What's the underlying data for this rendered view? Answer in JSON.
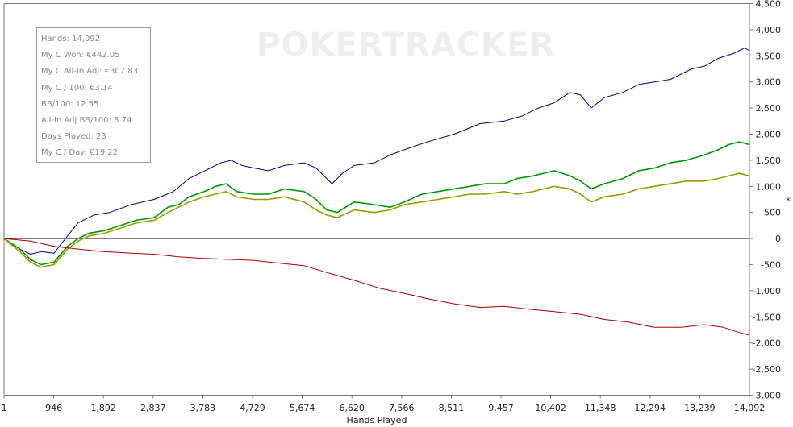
{
  "watermark": "POKERTRACKER",
  "stats": [
    "Hands: 14,092",
    "My C Won: €442.05",
    "My C All-In Adj: €307.83",
    "My C / 100: €3.14",
    "BB/100: 12.55",
    "All-In Adj BB/100: 8.74",
    "Days Played: 23",
    "My C / Day: €19.22"
  ],
  "chart_data": {
    "type": "line",
    "xlabel": "Hands Played",
    "ylabel": "*",
    "xlim": [
      1,
      14092
    ],
    "ylim": [
      -3000,
      4500
    ],
    "x_ticks": [
      "1",
      "946",
      "1,892",
      "2,837",
      "3,783",
      "4,729",
      "5,674",
      "6,620",
      "7,566",
      "8,511",
      "9,457",
      "10,402",
      "11,348",
      "12,294",
      "13,239",
      "14,092"
    ],
    "y_ticks": [
      "4,500",
      "4,000",
      "3,500",
      "3,000",
      "2,500",
      "2,000",
      "1,500",
      "1,000",
      "500",
      "0",
      "-500",
      "-1,000",
      "-1,500",
      "-2,000",
      "-2,500",
      "-3,000"
    ],
    "grid": false,
    "legend": "none",
    "series": [
      {
        "color": "#00009a",
        "x": [
          1,
          300,
          500,
          700,
          946,
          1200,
          1400,
          1500,
          1700,
          2000,
          2400,
          2837,
          3200,
          3500,
          3800,
          4100,
          4300,
          4500,
          4729,
          5000,
          5300,
          5674,
          5900,
          6200,
          6400,
          6620,
          7000,
          7300,
          7566,
          8000,
          8511,
          9000,
          9457,
          9800,
          10100,
          10402,
          10700,
          10900,
          11100,
          11348,
          11700,
          12000,
          12294,
          12600,
          13000,
          13239,
          13500,
          13800,
          14000,
          14092
        ],
        "values": [
          0,
          -200,
          -300,
          -250,
          -280,
          50,
          300,
          350,
          450,
          500,
          650,
          750,
          900,
          1150,
          1300,
          1450,
          1500,
          1400,
          1350,
          1300,
          1400,
          1450,
          1350,
          1050,
          1250,
          1400,
          1450,
          1600,
          1700,
          1850,
          2000,
          2200,
          2250,
          2350,
          2500,
          2600,
          2800,
          2750,
          2500,
          2700,
          2800,
          2950,
          3000,
          3050,
          3250,
          3300,
          3450,
          3550,
          3650,
          3600
        ]
      },
      {
        "color": "#009a00",
        "x": [
          1,
          300,
          500,
          700,
          946,
          1200,
          1400,
          1600,
          1892,
          2200,
          2500,
          2837,
          3100,
          3300,
          3500,
          3783,
          4000,
          4200,
          4400,
          4729,
          5000,
          5300,
          5674,
          5900,
          6100,
          6300,
          6620,
          7000,
          7300,
          7566,
          7900,
          8200,
          8511,
          8800,
          9100,
          9457,
          9700,
          10000,
          10200,
          10402,
          10700,
          10900,
          11100,
          11348,
          11700,
          12000,
          12294,
          12600,
          12900,
          13239,
          13500,
          13700,
          13900,
          14092
        ],
        "values": [
          0,
          -200,
          -400,
          -500,
          -450,
          -150,
          0,
          100,
          150,
          250,
          350,
          400,
          600,
          650,
          800,
          900,
          1000,
          1050,
          900,
          850,
          850,
          950,
          900,
          750,
          550,
          500,
          700,
          650,
          600,
          700,
          850,
          900,
          950,
          1000,
          1050,
          1050,
          1150,
          1200,
          1250,
          1300,
          1200,
          1100,
          950,
          1050,
          1150,
          1300,
          1350,
          1450,
          1500,
          1600,
          1700,
          1800,
          1850,
          1800
        ]
      },
      {
        "color": "#9a9a00",
        "x": [
          1,
          300,
          500,
          700,
          946,
          1200,
          1400,
          1600,
          1892,
          2200,
          2500,
          2837,
          3100,
          3300,
          3500,
          3783,
          4000,
          4200,
          4400,
          4729,
          5000,
          5300,
          5674,
          5900,
          6100,
          6300,
          6620,
          7000,
          7300,
          7566,
          7900,
          8200,
          8511,
          8800,
          9100,
          9457,
          9700,
          10000,
          10200,
          10402,
          10700,
          10900,
          11100,
          11348,
          11700,
          12000,
          12294,
          12600,
          12900,
          13239,
          13500,
          13700,
          13900,
          14092
        ],
        "values": [
          0,
          -250,
          -450,
          -550,
          -500,
          -200,
          -50,
          50,
          100,
          200,
          300,
          350,
          500,
          600,
          700,
          800,
          850,
          900,
          800,
          750,
          750,
          800,
          700,
          550,
          450,
          400,
          550,
          500,
          550,
          650,
          700,
          750,
          800,
          850,
          850,
          900,
          850,
          900,
          950,
          1000,
          950,
          850,
          700,
          800,
          850,
          950,
          1000,
          1050,
          1100,
          1100,
          1150,
          1200,
          1250,
          1200
        ]
      },
      {
        "color": "#aa0000",
        "x": [
          1,
          500,
          946,
          1400,
          1892,
          2400,
          2837,
          3300,
          3783,
          4300,
          4729,
          5200,
          5674,
          6100,
          6620,
          7100,
          7566,
          8000,
          8511,
          9000,
          9457,
          9900,
          10402,
          10900,
          11348,
          11800,
          12294,
          12800,
          13239,
          13600,
          13900,
          14092
        ],
        "values": [
          0,
          -50,
          -150,
          -200,
          -250,
          -280,
          -300,
          -350,
          -380,
          -400,
          -420,
          -470,
          -520,
          -650,
          -800,
          -950,
          -1050,
          -1150,
          -1250,
          -1320,
          -1300,
          -1350,
          -1400,
          -1450,
          -1550,
          -1600,
          -1700,
          -1700,
          -1650,
          -1700,
          -1800,
          -1850
        ]
      }
    ]
  }
}
